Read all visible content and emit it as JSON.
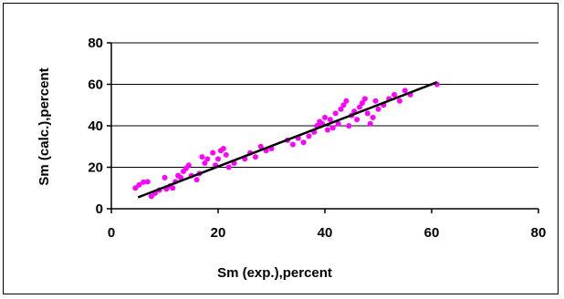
{
  "chart_data": {
    "type": "scatter",
    "title": "",
    "xlabel": "Sm (exp.),percent",
    "ylabel": "Sm (calc.),percent",
    "xlim": [
      0,
      80
    ],
    "ylim": [
      0,
      80
    ],
    "x_ticks": [
      "0",
      "20",
      "40",
      "60",
      "80"
    ],
    "y_ticks": [
      "0",
      "20",
      "40",
      "60",
      "80"
    ],
    "grid": "horizontal",
    "legend": "none",
    "point_color": "#ff00ff",
    "line_color": "#000000",
    "series": [
      {
        "points": [
          [
            4.5,
            10
          ],
          [
            5.2,
            11.5
          ],
          [
            6,
            12.8
          ],
          [
            6.8,
            13
          ],
          [
            7.5,
            6
          ],
          [
            8.2,
            7.5
          ],
          [
            9,
            9
          ],
          [
            10,
            15
          ],
          [
            10.3,
            9.5
          ],
          [
            11,
            11
          ],
          [
            11.5,
            10
          ],
          [
            12,
            13
          ],
          [
            12.5,
            16
          ],
          [
            13,
            15
          ],
          [
            13.5,
            18
          ],
          [
            14,
            19.5
          ],
          [
            14.5,
            21
          ],
          [
            15,
            16
          ],
          [
            16,
            14
          ],
          [
            16.5,
            17
          ],
          [
            17,
            25
          ],
          [
            17.5,
            22
          ],
          [
            18,
            24
          ],
          [
            19,
            27
          ],
          [
            19.5,
            21
          ],
          [
            20,
            24
          ],
          [
            20.5,
            28
          ],
          [
            21,
            29
          ],
          [
            21.5,
            26
          ],
          [
            22,
            20
          ],
          [
            23,
            22
          ],
          [
            25,
            24
          ],
          [
            26,
            27
          ],
          [
            27,
            25
          ],
          [
            28,
            30
          ],
          [
            29,
            28
          ],
          [
            30,
            29
          ],
          [
            33,
            33
          ],
          [
            34,
            31
          ],
          [
            35,
            34
          ],
          [
            36,
            32
          ],
          [
            37,
            35
          ],
          [
            38,
            37
          ],
          [
            38.5,
            40
          ],
          [
            39,
            42
          ],
          [
            39.5,
            41
          ],
          [
            40,
            44
          ],
          [
            40.5,
            38
          ],
          [
            41,
            43
          ],
          [
            41.5,
            39
          ],
          [
            42,
            46
          ],
          [
            42.5,
            41
          ],
          [
            43,
            48
          ],
          [
            43.5,
            50
          ],
          [
            44,
            52
          ],
          [
            44.5,
            40
          ],
          [
            45,
            45
          ],
          [
            45.5,
            47
          ],
          [
            46,
            43
          ],
          [
            46.5,
            49
          ],
          [
            47,
            51
          ],
          [
            47.5,
            53
          ],
          [
            48,
            46
          ],
          [
            48.5,
            41
          ],
          [
            49,
            44
          ],
          [
            49.5,
            52
          ],
          [
            50,
            48
          ],
          [
            51,
            50
          ],
          [
            52,
            53
          ],
          [
            53,
            55
          ],
          [
            54,
            52
          ],
          [
            55,
            57
          ],
          [
            56,
            55
          ],
          [
            61,
            60
          ]
        ]
      }
    ],
    "fit_line": {
      "x": [
        5,
        61
      ],
      "y": [
        5.5,
        61
      ]
    }
  }
}
